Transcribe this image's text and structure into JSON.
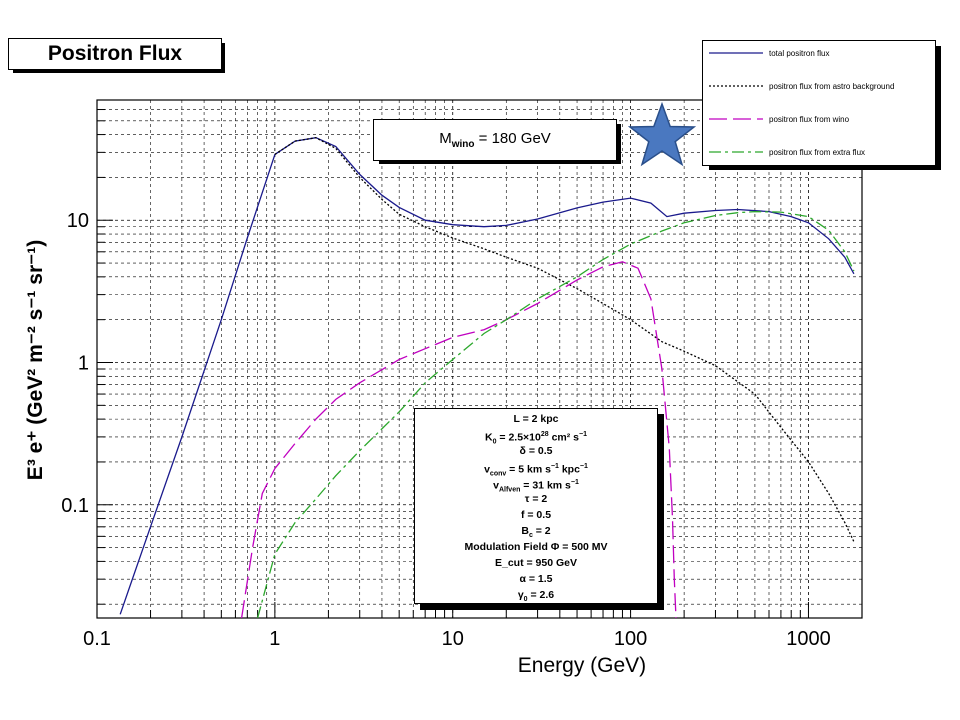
{
  "chart_data": {
    "type": "line",
    "title": "Positron Flux",
    "xlabel": "Energy (GeV)",
    "ylabel": "E³ e⁺ (GeV² m⁻² s⁻¹ sr⁻¹)",
    "xscale": "log",
    "yscale": "log",
    "xlim": [
      0.1,
      2000
    ],
    "ylim": [
      0.016,
      70
    ],
    "grid": true,
    "legend_position": "top-right",
    "x_ticks": [
      {
        "value": 0.1,
        "label": "0.1"
      },
      {
        "value": 1,
        "label": "1"
      },
      {
        "value": 10,
        "label": "10"
      },
      {
        "value": 100,
        "label": "100"
      },
      {
        "value": 1000,
        "label": "1000"
      }
    ],
    "y_ticks": [
      {
        "value": 0.1,
        "label": "0.1"
      },
      {
        "value": 1,
        "label": "1"
      },
      {
        "value": 10,
        "label": "10"
      }
    ],
    "series": [
      {
        "name": "total positron flux",
        "color": "#1a1a8c",
        "dash": "",
        "x": [
          0.135,
          0.2,
          0.3,
          0.5,
          0.7,
          1.0,
          1.3,
          1.7,
          2.2,
          3,
          4,
          5,
          7,
          10,
          15,
          20,
          30,
          50,
          70,
          100,
          130,
          160,
          200,
          300,
          400,
          600,
          800,
          1000,
          1300,
          1600,
          1800
        ],
        "y": [
          0.017,
          0.07,
          0.3,
          2.0,
          7.5,
          29,
          36,
          38,
          33,
          21,
          15,
          12.3,
          10,
          9.3,
          9.0,
          9.2,
          10.2,
          12.2,
          13.4,
          14.3,
          13.2,
          10.6,
          11.2,
          11.7,
          11.9,
          11.5,
          10.6,
          9.6,
          7.4,
          5.5,
          4.2
        ]
      },
      {
        "name": "positron flux from astro background",
        "color": "#000000",
        "dash": "2,2",
        "x": [
          1.0,
          1.3,
          1.7,
          2.2,
          3,
          4,
          5,
          7,
          10,
          15,
          20,
          30,
          50,
          70,
          100,
          150,
          200,
          300,
          500,
          700,
          1000,
          1300,
          1600,
          1800
        ],
        "y": [
          29,
          36,
          38,
          32,
          20,
          14,
          11,
          9.0,
          7.5,
          6.3,
          5.5,
          4.6,
          3.3,
          2.6,
          2.0,
          1.4,
          1.2,
          0.95,
          0.6,
          0.35,
          0.2,
          0.12,
          0.075,
          0.055
        ]
      },
      {
        "name": "positron flux from wino",
        "color": "#c000c0",
        "dash": "18,6",
        "x": [
          0.65,
          0.75,
          0.85,
          1.0,
          1.3,
          1.7,
          2.2,
          3,
          5,
          7,
          10,
          15,
          20,
          30,
          50,
          70,
          90,
          110,
          130,
          150,
          165,
          172,
          176,
          180
        ],
        "y": [
          0.016,
          0.05,
          0.12,
          0.18,
          0.27,
          0.4,
          0.55,
          0.72,
          1.05,
          1.25,
          1.5,
          1.7,
          2.0,
          2.6,
          3.8,
          4.7,
          5.1,
          4.6,
          2.8,
          0.9,
          0.25,
          0.08,
          0.03,
          0.016
        ]
      },
      {
        "name": "positron flux from extra flux",
        "color": "#2ca82c",
        "dash": "12,4,3,4",
        "x": [
          0.8,
          1.0,
          1.3,
          1.7,
          2.2,
          3,
          5,
          7,
          10,
          15,
          20,
          30,
          50,
          70,
          100,
          150,
          200,
          300,
          400,
          500,
          700,
          1000,
          1300,
          1600,
          1800
        ],
        "y": [
          0.016,
          0.045,
          0.075,
          0.11,
          0.16,
          0.24,
          0.45,
          0.72,
          1.05,
          1.6,
          2.0,
          2.8,
          4.0,
          5.3,
          6.8,
          8.4,
          9.6,
          10.8,
          11.3,
          11.5,
          11.4,
          10.6,
          8.5,
          6.0,
          4.4
        ]
      }
    ]
  },
  "mass_label": {
    "prefix": "M",
    "sub": "wino",
    "suffix": " = 180 GeV"
  },
  "params": [
    {
      "main": "L = 2 kpc"
    },
    {
      "main": "K",
      "sub": "0",
      "rest": " = 2.5×10",
      "sup": "28",
      "rest2": " cm² s",
      "sup2": "−1"
    },
    {
      "main": "δ = 0.5"
    },
    {
      "main": "v",
      "sub": "conv",
      "rest": " = 5 km s",
      "sup": "−1",
      "rest2": " kpc",
      "sup2": "−1"
    },
    {
      "main": "v",
      "sub": "Alfven",
      "rest": " = 31 km s",
      "sup": "−1"
    },
    {
      "main": "τ = 2"
    },
    {
      "main": "f = 0.5"
    },
    {
      "main": "B",
      "sub": "c",
      "rest": " = 2"
    },
    {
      "main": "Modulation Field   Φ = 500 MV"
    },
    {
      "main": "E_cut = 950 GeV"
    },
    {
      "main": "α = 1.5"
    },
    {
      "main": "γ",
      "sub": "0",
      "rest": " = 2.6"
    }
  ]
}
